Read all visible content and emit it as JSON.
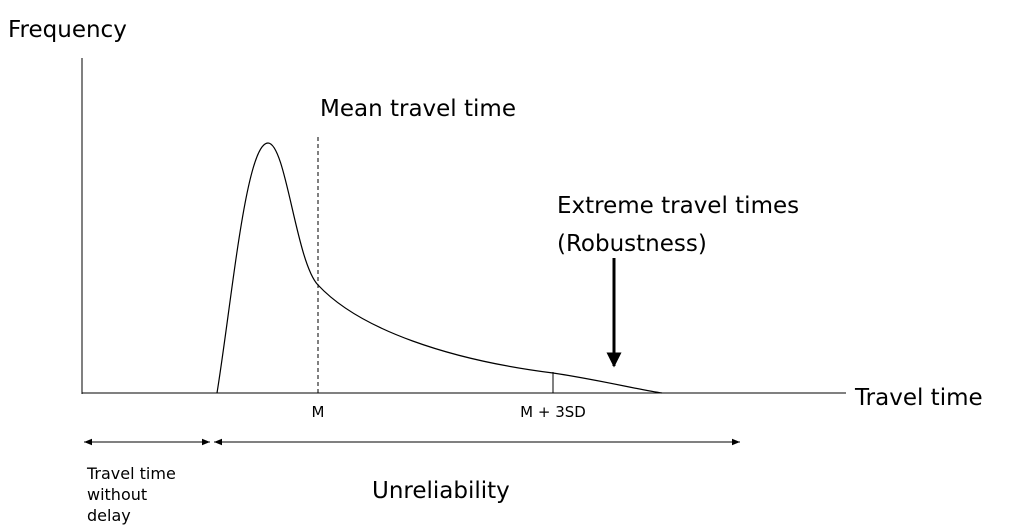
{
  "labels": {
    "y_axis": "Frequency",
    "x_axis": "Travel time",
    "mean": "Mean travel time",
    "extreme": [
      "Extreme travel times",
      "(Robustness)"
    ],
    "m": "M",
    "m_3sd": "M + 3SD",
    "baseline": [
      "Travel time",
      "without",
      "delay"
    ],
    "unreliability": "Unreliability"
  }
}
